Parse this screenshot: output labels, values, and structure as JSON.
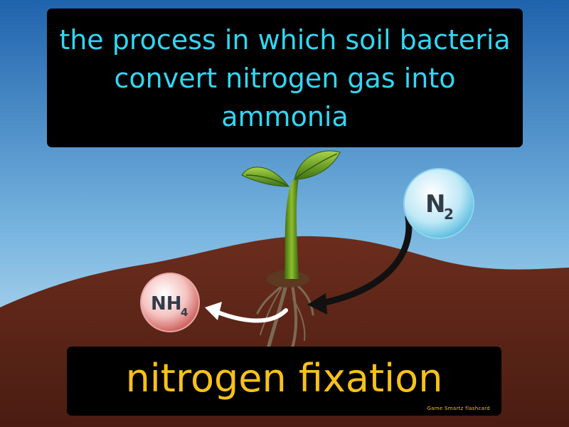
{
  "definition": "the process in which soil bacteria convert nitrogen gas into ammonia",
  "term": "nitrogen fixation",
  "watermark": "Game Smartz flashcard",
  "molecules": {
    "nitrogen": {
      "symbol": "N",
      "subscript": "2"
    },
    "ammonium": {
      "symbol": "NH",
      "subscript": "4"
    }
  },
  "colors": {
    "definition_text": "#33d6f3",
    "term_text": "#f7c118",
    "sky_top": "#1f63ad",
    "sky_bottom": "#d6ecf6",
    "soil": "#5b2418"
  },
  "icons": [
    "seedling-illustration",
    "nitrogen-molecule-icon",
    "ammonium-molecule-icon",
    "arrow-icon"
  ]
}
